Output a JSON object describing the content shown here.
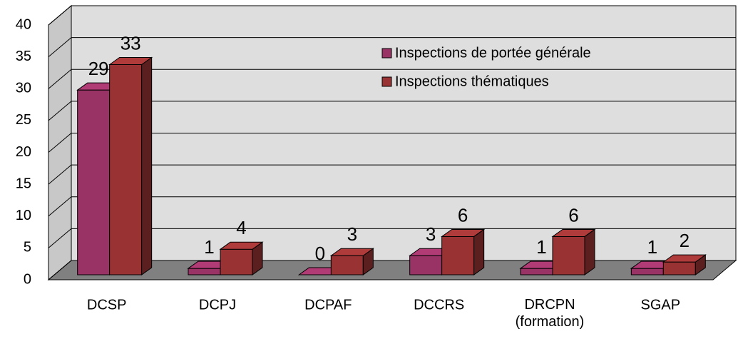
{
  "chart_data": {
    "type": "bar3d",
    "categories": [
      "DCSP",
      "DCPJ",
      "DCPAF",
      "DCCRS",
      "DRCPN\n(formation)",
      "SGAP"
    ],
    "series": [
      {
        "name": "Inspections de portée générale",
        "color": "#993366",
        "values": [
          29,
          1,
          0,
          3,
          1,
          1
        ]
      },
      {
        "name": "Inspections thématiques",
        "color": "#993333",
        "values": [
          33,
          4,
          3,
          6,
          6,
          2
        ]
      }
    ],
    "ylim": [
      0,
      40
    ],
    "yticks": [
      0,
      5,
      10,
      15,
      20,
      25,
      30,
      35,
      40
    ],
    "grid": true,
    "legend": "top-right"
  }
}
